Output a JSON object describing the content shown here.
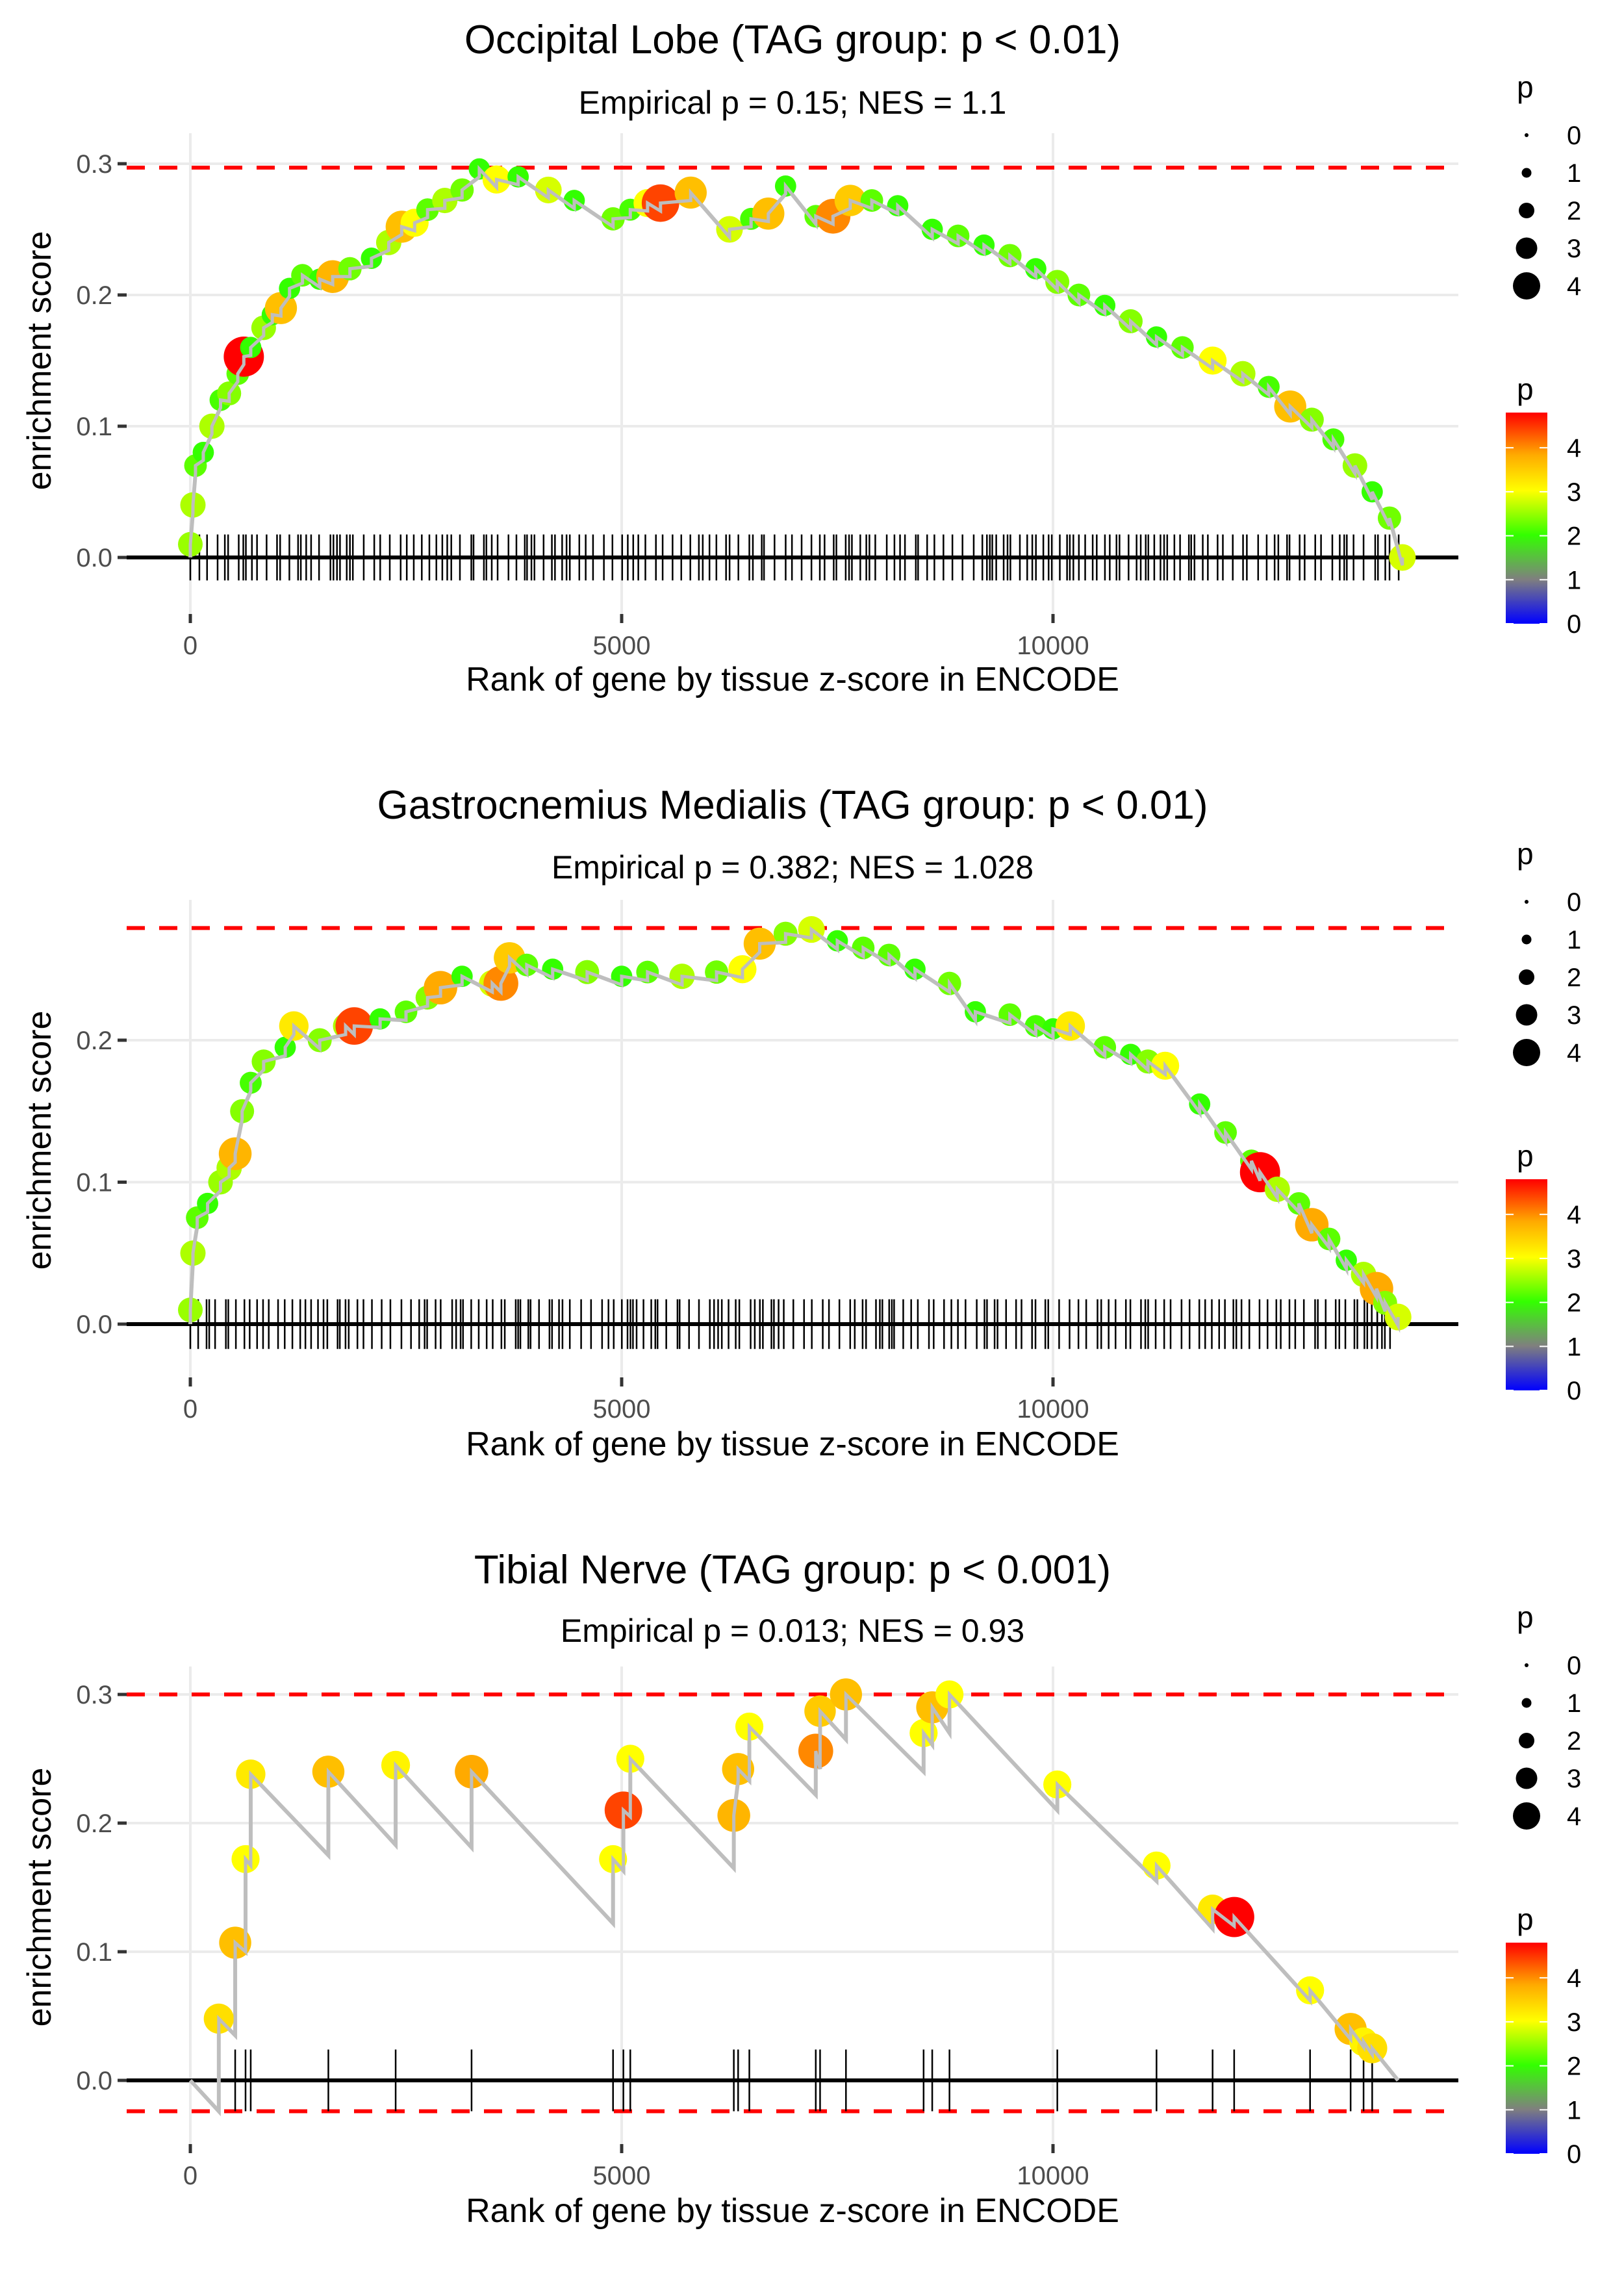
{
  "figure": {
    "x_axis_label": "Rank of gene by tissue z-score in ENCODE",
    "y_axis_label": "enrichment score",
    "size_legend": {
      "title": "p",
      "labels": [
        "0",
        "1",
        "2",
        "3",
        "4"
      ]
    },
    "color_legend": {
      "title": "p",
      "labels": [
        "4",
        "3",
        "2",
        "1",
        "0"
      ],
      "colors": {
        "0": "#0000ff",
        "1": "#7f7f7f",
        "2": "#33ff00",
        "3": "#ffff00",
        "4.8": "#ff0000"
      }
    },
    "colors": {
      "line": "#bebebe",
      "dashed": "#ff0000",
      "baseline": "#000000",
      "grid": "#ebebeb"
    }
  },
  "chart_data": [
    {
      "type": "line",
      "title": "Occipital Lobe (TAG group: p < 0.01)",
      "subtitle": "Empirical p = 0.15; NES = 1.1",
      "xlabel": "Rank of gene by tissue z-score in ENCODE",
      "ylabel": "enrichment score",
      "xlim": [
        -700,
        14700
      ],
      "ylim": [
        -0.025,
        0.315
      ],
      "xticks": [
        0,
        5000,
        10000
      ],
      "xtick_labels": [
        "0",
        "5000",
        "10000"
      ],
      "yticks": [
        0.0,
        0.1,
        0.2,
        0.3
      ],
      "ytick_labels": [
        "0.0",
        "0.1",
        "0.2",
        "0.3"
      ],
      "grid": true,
      "max_es_line": 0.297,
      "min_es_line": 0.0,
      "legend_position": "right",
      "points": [
        [
          0,
          0.01,
          2.5
        ],
        [
          30,
          0.04,
          2.6
        ],
        [
          60,
          0.07,
          2.2
        ],
        [
          150,
          0.08,
          2.0
        ],
        [
          250,
          0.1,
          2.6
        ],
        [
          350,
          0.12,
          2.1
        ],
        [
          450,
          0.125,
          2.4
        ],
        [
          550,
          0.14,
          2.2
        ],
        [
          620,
          0.153,
          4.8
        ],
        [
          700,
          0.16,
          2.0
        ],
        [
          850,
          0.175,
          2.5
        ],
        [
          950,
          0.185,
          2.0
        ],
        [
          1050,
          0.19,
          3.6
        ],
        [
          1150,
          0.205,
          2.0
        ],
        [
          1300,
          0.215,
          2.2
        ],
        [
          1500,
          0.212,
          2.0
        ],
        [
          1650,
          0.214,
          3.7
        ],
        [
          1850,
          0.22,
          2.3
        ],
        [
          2100,
          0.228,
          2.0
        ],
        [
          2300,
          0.24,
          2.6
        ],
        [
          2450,
          0.252,
          3.6
        ],
        [
          2600,
          0.255,
          3.0
        ],
        [
          2750,
          0.265,
          2.2
        ],
        [
          2950,
          0.272,
          2.6
        ],
        [
          3150,
          0.28,
          2.3
        ],
        [
          3350,
          0.296,
          2.0
        ],
        [
          3550,
          0.288,
          3.0
        ],
        [
          3800,
          0.29,
          2.0
        ],
        [
          4150,
          0.28,
          2.8
        ],
        [
          4450,
          0.272,
          2.0
        ],
        [
          4900,
          0.258,
          2.3
        ],
        [
          5100,
          0.265,
          2.1
        ],
        [
          5300,
          0.27,
          3.0
        ],
        [
          5450,
          0.27,
          4.4
        ],
        [
          5800,
          0.278,
          3.6
        ],
        [
          6250,
          0.25,
          2.8
        ],
        [
          6500,
          0.258,
          2.1
        ],
        [
          6700,
          0.262,
          3.6
        ],
        [
          6900,
          0.283,
          2.0
        ],
        [
          7250,
          0.26,
          2.2
        ],
        [
          7450,
          0.26,
          4.0
        ],
        [
          7650,
          0.272,
          3.5
        ],
        [
          7900,
          0.272,
          2.2
        ],
        [
          8200,
          0.268,
          2.0
        ],
        [
          8600,
          0.25,
          2.0
        ],
        [
          8900,
          0.245,
          2.2
        ],
        [
          9200,
          0.238,
          2.0
        ],
        [
          9500,
          0.23,
          2.3
        ],
        [
          9800,
          0.22,
          2.0
        ],
        [
          10050,
          0.21,
          2.4
        ],
        [
          10300,
          0.2,
          2.2
        ],
        [
          10600,
          0.192,
          2.0
        ],
        [
          10900,
          0.18,
          2.4
        ],
        [
          11200,
          0.168,
          2.0
        ],
        [
          11500,
          0.16,
          2.2
        ],
        [
          11850,
          0.15,
          3.0
        ],
        [
          12200,
          0.14,
          2.6
        ],
        [
          12500,
          0.13,
          2.1
        ],
        [
          12750,
          0.115,
          3.6
        ],
        [
          13000,
          0.105,
          2.4
        ],
        [
          13250,
          0.09,
          2.1
        ],
        [
          13500,
          0.07,
          2.5
        ],
        [
          13700,
          0.05,
          2.0
        ],
        [
          13900,
          0.03,
          2.3
        ],
        [
          14050,
          0.0,
          2.8
        ]
      ],
      "hits_note": "dense hit ticks across ranks 0-14050"
    },
    {
      "type": "line",
      "title": "Gastrocnemius Medialis (TAG group: p < 0.01)",
      "subtitle": "Empirical p = 0.382; NES = 1.028",
      "xlabel": "Rank of gene by tissue z-score in ENCODE",
      "ylabel": "enrichment score",
      "xlim": [
        -700,
        14700
      ],
      "ylim": [
        -0.025,
        0.29
      ],
      "xticks": [
        0,
        5000,
        10000
      ],
      "xtick_labels": [
        "0",
        "5000",
        "10000"
      ],
      "yticks": [
        0.0,
        0.1,
        0.2
      ],
      "ytick_labels": [
        "0.0",
        "0.1",
        "0.2"
      ],
      "grid": true,
      "max_es_line": 0.279,
      "min_es_line": 0.0,
      "legend_position": "right",
      "points": [
        [
          0,
          0.01,
          2.5
        ],
        [
          30,
          0.05,
          2.6
        ],
        [
          80,
          0.075,
          2.2
        ],
        [
          200,
          0.085,
          2.0
        ],
        [
          350,
          0.1,
          2.5
        ],
        [
          450,
          0.11,
          2.6
        ],
        [
          520,
          0.12,
          3.7
        ],
        [
          600,
          0.15,
          2.4
        ],
        [
          700,
          0.17,
          2.1
        ],
        [
          850,
          0.185,
          2.4
        ],
        [
          1100,
          0.195,
          2.0
        ],
        [
          1200,
          0.21,
          3.2
        ],
        [
          1500,
          0.2,
          2.4
        ],
        [
          1800,
          0.21,
          2.6
        ],
        [
          1900,
          0.21,
          4.4
        ],
        [
          2200,
          0.215,
          2.0
        ],
        [
          2500,
          0.22,
          2.2
        ],
        [
          2750,
          0.23,
          2.4
        ],
        [
          2900,
          0.237,
          3.8
        ],
        [
          3150,
          0.245,
          2.0
        ],
        [
          3500,
          0.24,
          2.8
        ],
        [
          3600,
          0.24,
          4.0
        ],
        [
          3700,
          0.258,
          3.5
        ],
        [
          3900,
          0.253,
          2.2
        ],
        [
          4200,
          0.25,
          2.0
        ],
        [
          4600,
          0.248,
          2.4
        ],
        [
          5000,
          0.245,
          2.0
        ],
        [
          5300,
          0.248,
          2.2
        ],
        [
          5700,
          0.245,
          2.6
        ],
        [
          6100,
          0.248,
          2.3
        ],
        [
          6400,
          0.25,
          3.0
        ],
        [
          6600,
          0.268,
          3.6
        ],
        [
          6900,
          0.275,
          2.4
        ],
        [
          7200,
          0.278,
          2.8
        ],
        [
          7500,
          0.27,
          2.0
        ],
        [
          7800,
          0.265,
          2.2
        ],
        [
          8100,
          0.26,
          2.2
        ],
        [
          8400,
          0.25,
          2.0
        ],
        [
          8800,
          0.24,
          2.3
        ],
        [
          9100,
          0.22,
          2.0
        ],
        [
          9500,
          0.218,
          2.2
        ],
        [
          9800,
          0.21,
          2.1
        ],
        [
          10000,
          0.208,
          2.0
        ],
        [
          10200,
          0.21,
          3.2
        ],
        [
          10600,
          0.195,
          2.2
        ],
        [
          10900,
          0.19,
          2.0
        ],
        [
          11100,
          0.185,
          2.4
        ],
        [
          11300,
          0.182,
          3.0
        ],
        [
          11700,
          0.155,
          2.0
        ],
        [
          12000,
          0.135,
          2.2
        ],
        [
          12300,
          0.115,
          2.2
        ],
        [
          12400,
          0.107,
          4.8
        ],
        [
          12600,
          0.095,
          2.6
        ],
        [
          12850,
          0.085,
          2.2
        ],
        [
          13000,
          0.07,
          3.8
        ],
        [
          13200,
          0.06,
          2.2
        ],
        [
          13400,
          0.045,
          2.0
        ],
        [
          13600,
          0.035,
          2.6
        ],
        [
          13750,
          0.025,
          3.8
        ],
        [
          13850,
          0.015,
          2.4
        ],
        [
          14000,
          0.005,
          2.8
        ]
      ],
      "hits_note": "dense hit ticks across ranks 0-13950"
    },
    {
      "type": "line",
      "title": "Tibial Nerve (TAG group: p < 0.001)",
      "subtitle": "Empirical p = 0.013; NES = 0.93",
      "xlabel": "Rank of gene by tissue z-score in ENCODE",
      "ylabel": "enrichment score",
      "xlim": [
        -700,
        14700
      ],
      "ylim": [
        -0.04,
        0.315
      ],
      "xticks": [
        0,
        5000,
        10000
      ],
      "xtick_labels": [
        "0",
        "5000",
        "10000"
      ],
      "yticks": [
        0.0,
        0.1,
        0.2,
        0.3
      ],
      "ytick_labels": [
        "0.0",
        "0.1",
        "0.2",
        "0.3"
      ],
      "grid": true,
      "max_es_line": 0.3,
      "min_es_line": -0.024,
      "legend_position": "right",
      "hits": [
        330,
        520,
        640,
        700,
        1600,
        2380,
        3260,
        4900,
        5020,
        5100,
        6300,
        6350,
        6480,
        7250,
        7300,
        7600,
        8500,
        8600,
        8800,
        10050,
        11200,
        11850,
        12100,
        12980,
        13450,
        13600,
        13700
      ],
      "points": [
        [
          330,
          0.048,
          3.3
        ],
        [
          520,
          0.107,
          3.6
        ],
        [
          640,
          0.172,
          3.0
        ],
        [
          700,
          0.238,
          3.2
        ],
        [
          1600,
          0.24,
          3.6
        ],
        [
          2380,
          0.245,
          3.1
        ],
        [
          3260,
          0.24,
          3.8
        ],
        [
          4900,
          0.172,
          3.0
        ],
        [
          5020,
          0.21,
          4.4
        ],
        [
          5100,
          0.25,
          3.0
        ],
        [
          6300,
          0.206,
          3.7
        ],
        [
          6350,
          0.242,
          3.6
        ],
        [
          6480,
          0.275,
          3.0
        ],
        [
          7250,
          0.256,
          4.0
        ],
        [
          7300,
          0.287,
          3.5
        ],
        [
          7600,
          0.3,
          3.6
        ],
        [
          8500,
          0.27,
          3.0
        ],
        [
          8600,
          0.29,
          3.6
        ],
        [
          8800,
          0.3,
          3.0
        ],
        [
          10050,
          0.23,
          3.0
        ],
        [
          11200,
          0.167,
          3.0
        ],
        [
          11850,
          0.133,
          3.2
        ],
        [
          12100,
          0.127,
          4.8
        ],
        [
          12980,
          0.07,
          3.0
        ],
        [
          13450,
          0.04,
          3.6
        ],
        [
          13600,
          0.03,
          3.1
        ],
        [
          13700,
          0.025,
          3.3
        ]
      ],
      "troughs": [
        [
          0,
          0.0
        ],
        [
          330,
          -0.024
        ],
        [
          520,
          0.035
        ],
        [
          640,
          0.1
        ],
        [
          700,
          0.167
        ],
        [
          1600,
          0.175
        ],
        [
          2380,
          0.183
        ],
        [
          3260,
          0.181
        ],
        [
          4900,
          0.122
        ],
        [
          5020,
          0.163
        ],
        [
          5100,
          0.205
        ],
        [
          6300,
          0.165
        ],
        [
          6350,
          0.233
        ],
        [
          6480,
          0.233
        ],
        [
          7250,
          0.222
        ],
        [
          7300,
          0.242
        ],
        [
          7600,
          0.265
        ],
        [
          8500,
          0.24
        ],
        [
          8600,
          0.261
        ],
        [
          8800,
          0.27
        ],
        [
          10050,
          0.21
        ],
        [
          11200,
          0.155
        ],
        [
          11850,
          0.118
        ],
        [
          12100,
          0.12
        ],
        [
          12980,
          0.062
        ],
        [
          13450,
          0.032
        ],
        [
          13600,
          0.026
        ],
        [
          13700,
          0.02
        ],
        [
          14000,
          0.0
        ]
      ]
    }
  ]
}
